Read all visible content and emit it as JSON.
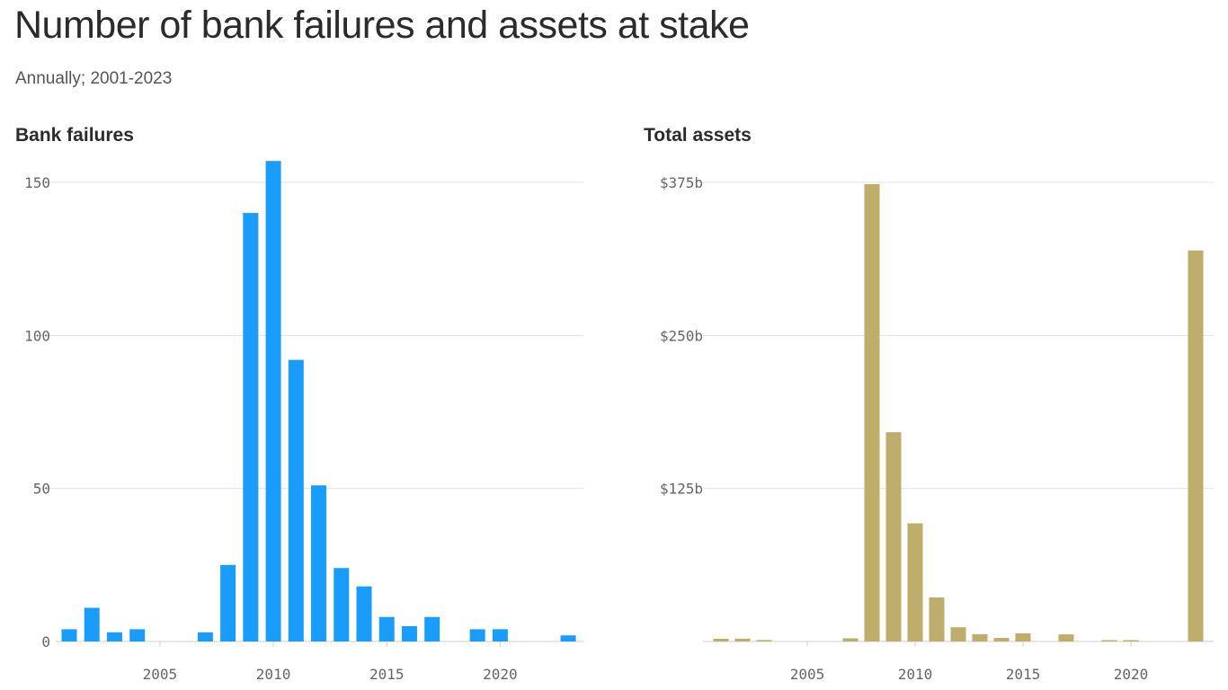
{
  "title": "Number of bank failures and assets at stake",
  "subtitle": "Annually; 2001-2023",
  "chart_data": [
    {
      "type": "bar",
      "title": "Bank failures",
      "color": "#1a9dfa",
      "x": [
        2001,
        2002,
        2003,
        2004,
        2005,
        2006,
        2007,
        2008,
        2009,
        2010,
        2011,
        2012,
        2013,
        2014,
        2015,
        2016,
        2017,
        2018,
        2019,
        2020,
        2021,
        2022,
        2023
      ],
      "values": [
        4,
        11,
        3,
        4,
        0,
        0,
        3,
        25,
        140,
        157,
        92,
        51,
        24,
        18,
        8,
        5,
        8,
        0,
        4,
        4,
        0,
        0,
        2
      ],
      "ylim": [
        0,
        150
      ],
      "yticks": [
        0,
        50,
        100,
        150
      ],
      "ytick_labels": [
        "0",
        "50",
        "100",
        "150"
      ],
      "xticks": [
        2005,
        2010,
        2015,
        2020
      ],
      "xtick_labels": [
        "2005",
        "2010",
        "2015",
        "2020"
      ],
      "grid": true
    },
    {
      "type": "bar",
      "title": "Total assets",
      "color": "#bfad6c",
      "x": [
        2001,
        2002,
        2003,
        2004,
        2005,
        2006,
        2007,
        2008,
        2009,
        2010,
        2011,
        2012,
        2013,
        2014,
        2015,
        2016,
        2017,
        2018,
        2019,
        2020,
        2021,
        2022,
        2023
      ],
      "values": [
        2.2,
        2.3,
        1.2,
        0,
        0,
        0,
        2.6,
        373.6,
        170.9,
        96.5,
        36.0,
        11.6,
        6.0,
        2.9,
        6.7,
        0,
        5.8,
        0,
        0.2,
        0.5,
        0,
        0,
        319.4
      ],
      "ylim": [
        0,
        375
      ],
      "yticks": [
        125,
        250,
        375
      ],
      "ytick_labels": [
        "$125b",
        "$250b",
        "$375b"
      ],
      "xticks": [
        2005,
        2010,
        2015,
        2020
      ],
      "xtick_labels": [
        "2005",
        "2010",
        "2015",
        "2020"
      ],
      "grid": true
    }
  ]
}
